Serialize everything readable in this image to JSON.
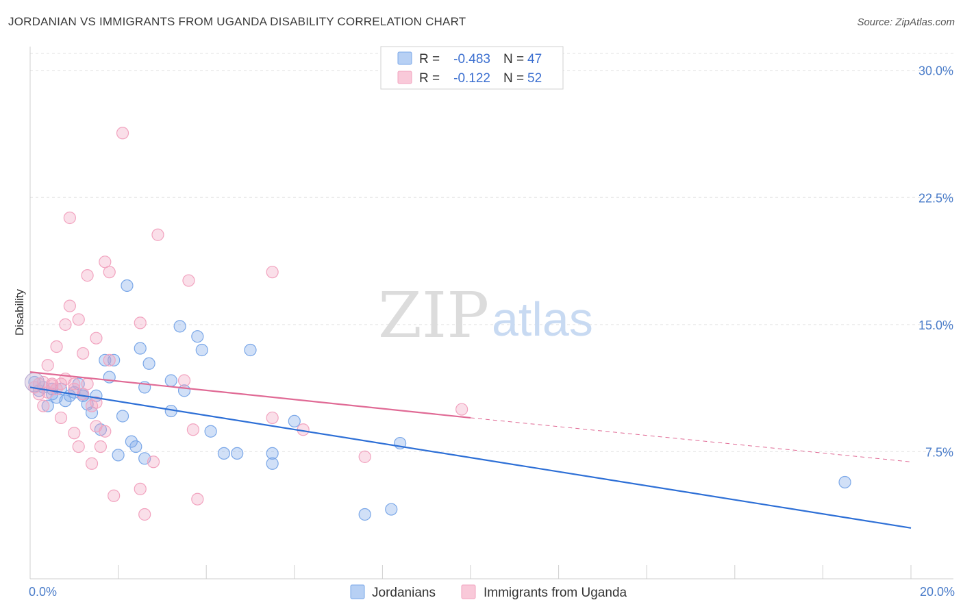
{
  "title": "JORDANIAN VS IMMIGRANTS FROM UGANDA DISABILITY CORRELATION CHART",
  "source": "Source: ZipAtlas.com",
  "watermark": {
    "zip": "ZIP",
    "atlas": "atlas"
  },
  "chart_data": {
    "type": "scatter",
    "title": "JORDANIAN VS IMMIGRANTS FROM UGANDA DISABILITY CORRELATION CHART",
    "xlabel": "",
    "ylabel": "Disability",
    "xlim": [
      0,
      20
    ],
    "ylim": [
      0,
      31
    ],
    "y_ticks": [
      {
        "value": 7.5,
        "label": "7.5%"
      },
      {
        "value": 15,
        "label": "15.0%"
      },
      {
        "value": 22.5,
        "label": "22.5%"
      },
      {
        "value": 30,
        "label": "30.0%"
      }
    ],
    "x_tick_labels": [
      {
        "value": 0,
        "label": "0.0%"
      },
      {
        "value": 20,
        "label": "20.0%"
      }
    ],
    "grid": true,
    "legend_position": "top-center",
    "stats": [
      {
        "r_label": "R =",
        "r_value": "-0.483",
        "n_label": "N =",
        "n_value": "47"
      },
      {
        "r_label": "R =",
        "r_value": "-0.122",
        "n_label": "N =",
        "n_value": "52"
      }
    ],
    "series": [
      {
        "name": "Jordanians",
        "color": "#7aa7e8",
        "line_color": "#2d6fd6",
        "trend": {
          "x0": 0,
          "y0": 11.3,
          "x1": 20,
          "y1": 3.0
        },
        "points": [
          [
            0.1,
            11.6
          ],
          [
            0.2,
            11.1
          ],
          [
            0.3,
            11.3
          ],
          [
            0.4,
            10.2
          ],
          [
            0.5,
            11.2
          ],
          [
            0.6,
            10.7
          ],
          [
            0.7,
            11.2
          ],
          [
            0.8,
            10.5
          ],
          [
            0.9,
            10.8
          ],
          [
            1.1,
            11.5
          ],
          [
            1.2,
            10.9
          ],
          [
            1.3,
            10.3
          ],
          [
            1.4,
            9.8
          ],
          [
            1.5,
            10.8
          ],
          [
            1.6,
            8.8
          ],
          [
            1.7,
            12.9
          ],
          [
            1.8,
            11.9
          ],
          [
            1.9,
            12.9
          ],
          [
            2.0,
            7.3
          ],
          [
            2.1,
            9.6
          ],
          [
            2.2,
            17.3
          ],
          [
            2.3,
            8.1
          ],
          [
            2.4,
            7.8
          ],
          [
            2.5,
            13.6
          ],
          [
            2.6,
            7.1
          ],
          [
            2.6,
            11.3
          ],
          [
            2.7,
            12.7
          ],
          [
            3.2,
            11.7
          ],
          [
            3.2,
            9.9
          ],
          [
            3.4,
            14.9
          ],
          [
            3.5,
            11.1
          ],
          [
            3.8,
            14.3
          ],
          [
            3.9,
            13.5
          ],
          [
            4.1,
            8.7
          ],
          [
            4.4,
            7.4
          ],
          [
            4.7,
            7.4
          ],
          [
            5.0,
            13.5
          ],
          [
            5.5,
            7.4
          ],
          [
            5.5,
            6.8
          ],
          [
            6.0,
            9.3
          ],
          [
            7.6,
            3.8
          ],
          [
            8.2,
            4.1
          ],
          [
            8.4,
            8.0
          ],
          [
            18.5,
            5.7
          ],
          [
            1.2,
            10.8
          ],
          [
            0.5,
            10.9
          ],
          [
            1.0,
            11.0
          ]
        ]
      },
      {
        "name": "Immigrants from Uganda",
        "color": "#f2a3bf",
        "line_color": "#e06a95",
        "trend": {
          "x0": 0,
          "y0": 12.2,
          "x1": 10,
          "y1": 9.5
        },
        "trend_dashed": {
          "x0": 10,
          "y0": 9.5,
          "x1": 20,
          "y1": 6.9
        },
        "points": [
          [
            0.1,
            11.3
          ],
          [
            0.2,
            11.5
          ],
          [
            0.3,
            10.2
          ],
          [
            0.4,
            12.6
          ],
          [
            0.5,
            11.5
          ],
          [
            0.6,
            13.7
          ],
          [
            0.7,
            9.5
          ],
          [
            0.8,
            15.0
          ],
          [
            0.9,
            16.1
          ],
          [
            1.0,
            8.6
          ],
          [
            1.0,
            11.5
          ],
          [
            1.1,
            15.3
          ],
          [
            1.1,
            7.8
          ],
          [
            1.2,
            13.3
          ],
          [
            1.3,
            11.5
          ],
          [
            1.3,
            17.9
          ],
          [
            1.4,
            10.2
          ],
          [
            1.4,
            6.8
          ],
          [
            1.5,
            9.0
          ],
          [
            1.5,
            14.2
          ],
          [
            1.6,
            7.8
          ],
          [
            1.7,
            8.7
          ],
          [
            1.7,
            18.7
          ],
          [
            1.8,
            12.9
          ],
          [
            1.8,
            18.1
          ],
          [
            1.9,
            4.9
          ],
          [
            2.1,
            26.3
          ],
          [
            2.5,
            15.1
          ],
          [
            2.5,
            5.3
          ],
          [
            2.6,
            3.8
          ],
          [
            2.8,
            6.9
          ],
          [
            2.9,
            20.3
          ],
          [
            3.5,
            11.7
          ],
          [
            3.6,
            17.6
          ],
          [
            3.7,
            8.8
          ],
          [
            3.8,
            4.7
          ],
          [
            0.9,
            21.3
          ],
          [
            0.5,
            11.4
          ],
          [
            1.2,
            10.9
          ],
          [
            1.0,
            11.2
          ],
          [
            5.5,
            9.5
          ],
          [
            5.5,
            18.1
          ],
          [
            6.2,
            8.8
          ],
          [
            7.6,
            7.2
          ],
          [
            9.8,
            10.0
          ],
          [
            0.2,
            10.9
          ],
          [
            0.3,
            11.6
          ],
          [
            0.6,
            11.2
          ],
          [
            0.8,
            11.8
          ],
          [
            1.5,
            10.4
          ],
          [
            0.4,
            11.0
          ],
          [
            0.7,
            11.5
          ]
        ]
      }
    ]
  }
}
